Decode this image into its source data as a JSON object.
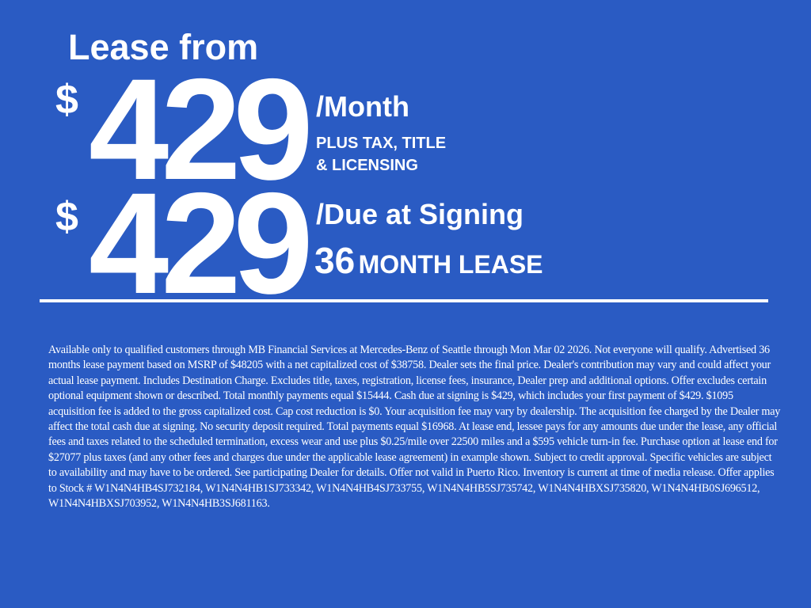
{
  "headline": "Lease from",
  "monthly": {
    "currency": "$",
    "amount": "429",
    "label": "/Month",
    "note_line1": "PLUS TAX, TITLE",
    "note_line2": "& LICENSING"
  },
  "signing": {
    "currency": "$",
    "amount": "429",
    "label": "/Due at Signing"
  },
  "term": {
    "months": "36",
    "label": "MONTH LEASE"
  },
  "colors": {
    "background": "#2a5bc3",
    "text": "#ffffff"
  },
  "disclaimer": "Available only to qualified customers through MB Financial Services at Mercedes-Benz of Seattle through Mon Mar 02 2026. Not everyone will qualify. Advertised 36 months lease payment based on MSRP of $48205 with a net capitalized cost of $38758. Dealer sets the final price. Dealer's contribution may vary and could affect your actual lease payment. Includes Destination Charge. Excludes title, taxes, registration, license fees, insurance, Dealer prep and additional options. Offer excludes certain optional equipment shown or described. Total monthly payments equal $15444. Cash due at signing is $429, which includes your first payment of $429. $1095 acquisition fee is added to the gross capitalized cost. Cap cost reduction is $0. Your acquisition fee may vary by dealership. The acquisition fee charged by the Dealer may affect the total cash due at signing. No security deposit required. Total payments equal $16968. At lease end, lessee pays for any amounts due under the lease, any official fees and taxes related to the scheduled termination, excess wear and use plus $0.25/mile over 22500 miles and a $595 vehicle turn-in fee. Purchase option at lease end for $27077 plus taxes (and any other fees and charges due under the applicable lease agreement) in example shown. Subject to credit approval. Specific vehicles are subject to availability and may have to be ordered. See participating Dealer for details. Offer not valid in Puerto Rico. Inventory is current at time of media release. Offer applies to Stock # W1N4N4HB4SJ732184, W1N4N4HB1SJ733342, W1N4N4HB4SJ733755, W1N4N4HB5SJ735742, W1N4N4HBXSJ735820, W1N4N4HB0SJ696512, W1N4N4HBXSJ703952, W1N4N4HB3SJ681163."
}
